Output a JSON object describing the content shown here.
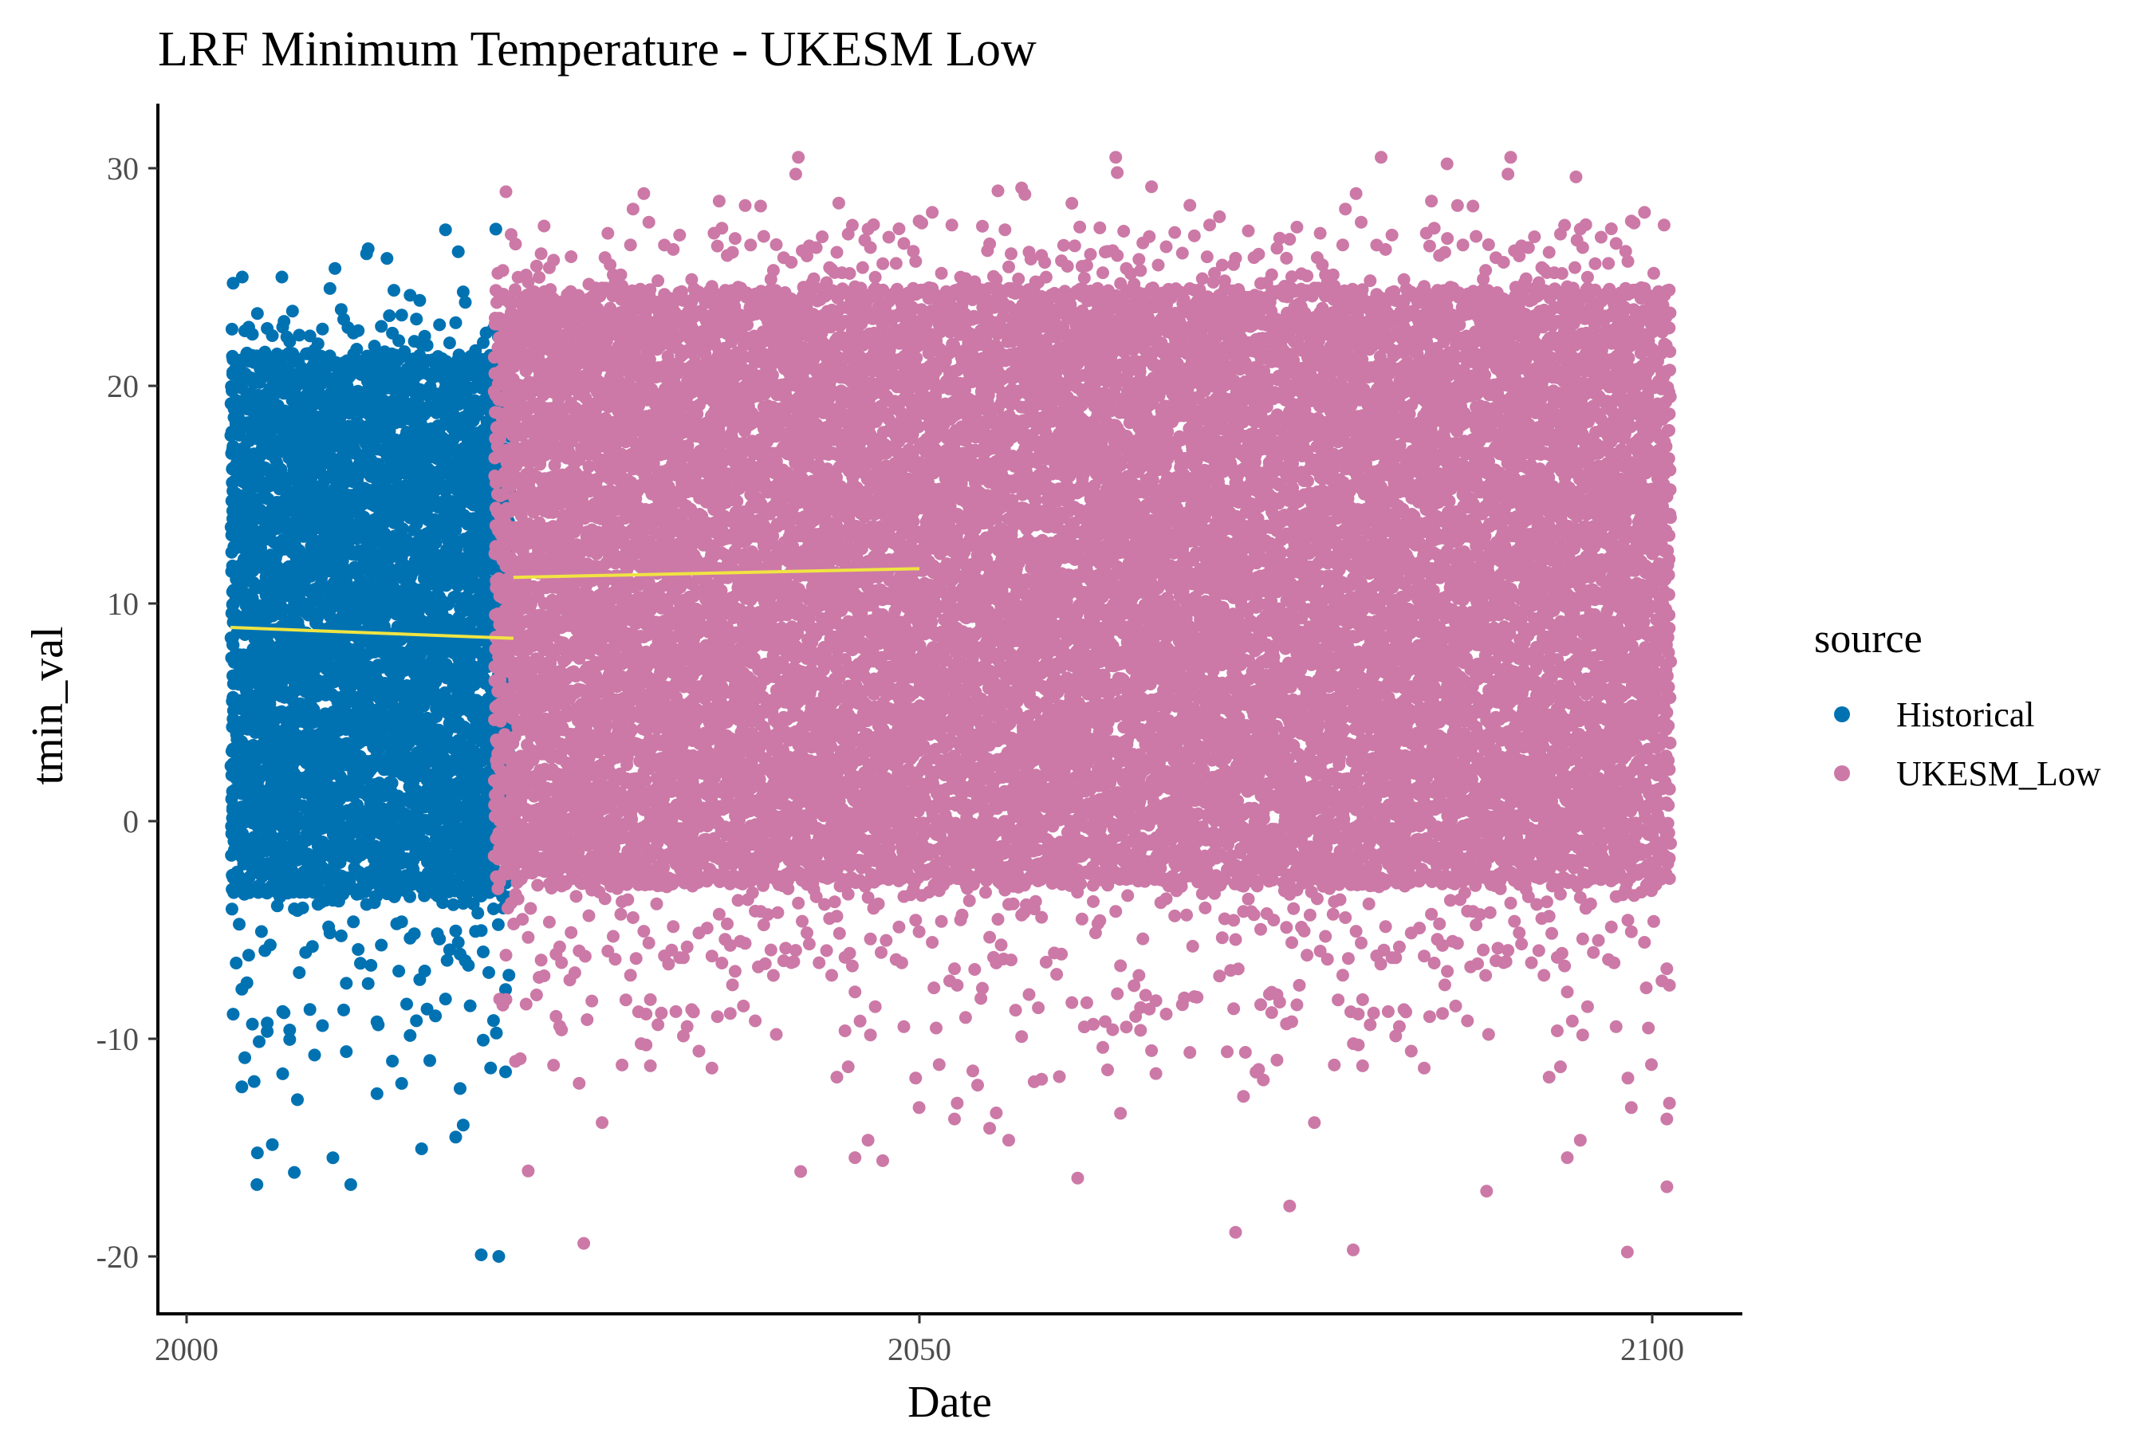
{
  "chart_data": {
    "type": "scatter",
    "title": "LRF Minimum Temperature - UKESM Low",
    "xlabel": "Date",
    "ylabel": "tmin_val",
    "xlim": [
      1999,
      2105
    ],
    "ylim": [
      -21.4,
      33.5
    ],
    "x_ticks": [
      2000,
      2050,
      2100
    ],
    "y_ticks": [
      -20,
      -10,
      0,
      10,
      20,
      30
    ],
    "grid": false,
    "legend": {
      "title": "source",
      "position": "right",
      "entries": [
        "Historical",
        "UKESM_Low"
      ]
    },
    "series": [
      {
        "name": "Historical",
        "color": "#0072B2",
        "x_range": [
          2003.0,
          2022.1
        ],
        "y_band": [
          -3.5,
          21.5
        ],
        "y_max": 27.2,
        "y_min": -20.0
      },
      {
        "name": "UKESM_Low",
        "color": "#CC79A7",
        "x_range": [
          2021.0,
          2101.3
        ],
        "y_band": [
          -3.0,
          24.5
        ],
        "y_max": 30.5,
        "y_min": -19.8
      }
    ],
    "trend_lines": [
      {
        "series": "Historical",
        "color": "#F0E442",
        "x": [
          2003.0,
          2022.3
        ],
        "y": [
          8.9,
          8.4
        ]
      },
      {
        "series": "UKESM_Low",
        "color": "#F0E442",
        "x": [
          2022.3,
          2050.0
        ],
        "y": [
          11.2,
          11.6
        ]
      }
    ],
    "notable_points": [
      {
        "series": "Historical",
        "x": 2004.8,
        "y": -16.7
      },
      {
        "series": "Historical",
        "x": 2011.2,
        "y": -16.7
      },
      {
        "series": "Historical",
        "x": 2021.3,
        "y": -20.0
      },
      {
        "series": "Historical",
        "x": 2021.1,
        "y": 27.2
      },
      {
        "series": "Historical",
        "x": 2003.8,
        "y": 25.0
      },
      {
        "series": "Historical",
        "x": 2006.5,
        "y": 25.0
      },
      {
        "series": "UKESM_Low",
        "x": 2027.1,
        "y": -19.4
      },
      {
        "series": "UKESM_Low",
        "x": 2041.9,
        "y": -16.1
      },
      {
        "series": "UKESM_Low",
        "x": 2047.5,
        "y": -15.6
      },
      {
        "series": "UKESM_Low",
        "x": 2060.8,
        "y": -16.4
      },
      {
        "series": "UKESM_Low",
        "x": 2079.6,
        "y": -19.7
      },
      {
        "series": "UKESM_Low",
        "x": 2088.7,
        "y": -17.0
      },
      {
        "series": "UKESM_Low",
        "x": 2098.3,
        "y": -19.8
      },
      {
        "series": "UKESM_Low",
        "x": 2101.0,
        "y": -16.8
      },
      {
        "series": "UKESM_Low",
        "x": 2081.5,
        "y": 30.5
      },
      {
        "series": "UKESM_Low",
        "x": 2086.0,
        "y": 30.2
      },
      {
        "series": "UKESM_Low",
        "x": 2063.5,
        "y": 29.8
      },
      {
        "series": "UKESM_Low",
        "x": 2094.8,
        "y": 29.6
      },
      {
        "series": "UKESM_Low",
        "x": 2057.2,
        "y": 28.8
      },
      {
        "series": "UKESM_Low",
        "x": 2044.5,
        "y": 28.4
      }
    ]
  }
}
